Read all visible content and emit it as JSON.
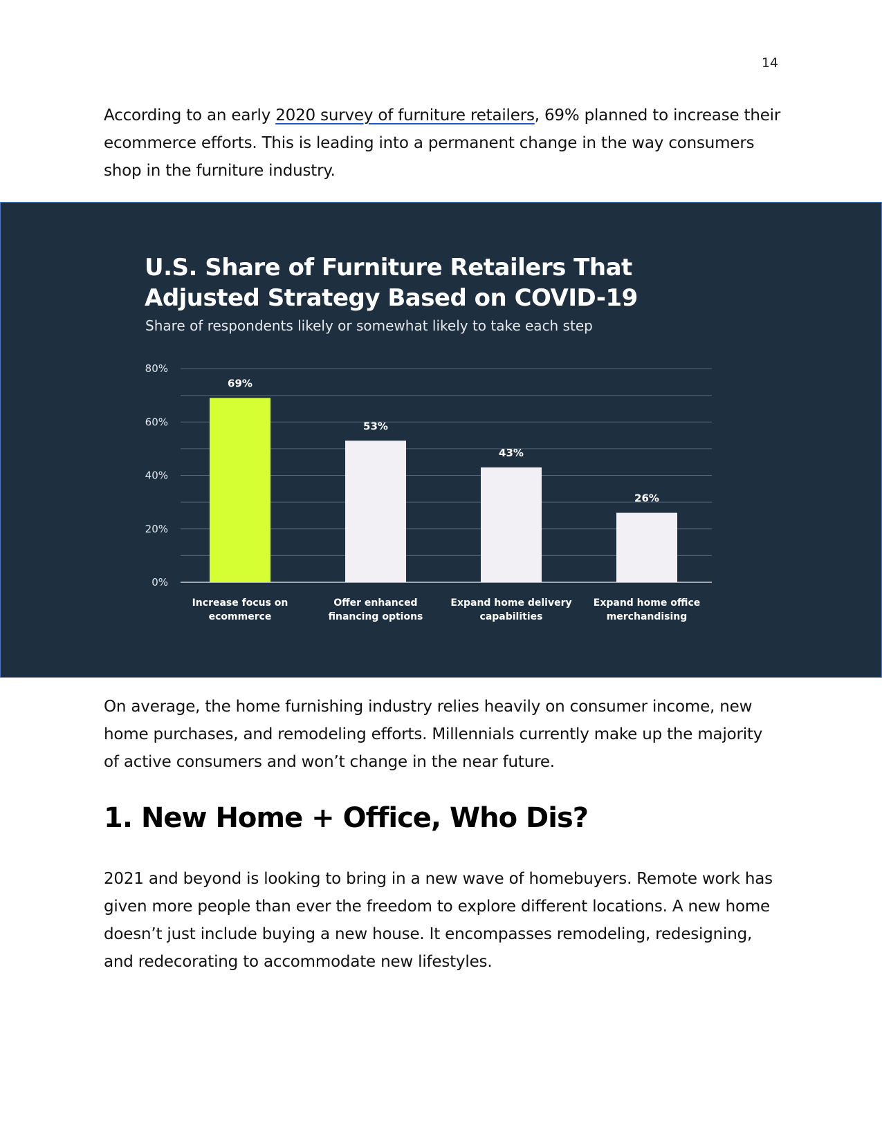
{
  "page_number": "14",
  "intro": {
    "before_link": "According to an early ",
    "link_text": "2020 survey of furniture retailers",
    "after_link": ", 69% planned to increase their ecommerce efforts. This is leading into a permanent change in the way consumers shop in the furniture industry."
  },
  "chart_data": {
    "type": "bar",
    "title": "U.S. Share of Furniture Retailers That Adjusted Strategy Based on COVID-19",
    "subtitle": "Share of respondents likely or somewhat likely to take each step",
    "categories": [
      [
        "Increase focus on",
        "ecommerce"
      ],
      [
        "Offer enhanced",
        "financing options"
      ],
      [
        "Expand home delivery",
        "capabilities"
      ],
      [
        "Expand home office",
        "merchandising"
      ]
    ],
    "values": [
      69,
      53,
      43,
      26
    ],
    "value_labels": [
      "69%",
      "53%",
      "43%",
      "26%"
    ],
    "ylim": [
      0,
      80
    ],
    "yticks": [
      0,
      20,
      40,
      60,
      80
    ],
    "ytick_labels": [
      "0%",
      "20%",
      "40%",
      "60%",
      "80%"
    ],
    "grid": true,
    "colors": {
      "highlight": "#d6ff33",
      "bar": "#f2f0f4",
      "grid": "#56657a",
      "axis": "#c9ced6",
      "label": "#ffffff",
      "background": "#1e2f40"
    }
  },
  "paragraph_2": "On average, the home furnishing industry relies heavily on consumer income, new home purchases, and remodeling efforts. Millennials currently make up the majority of active consumers and won’t change in the near future.",
  "section_heading": "1. New Home + Office, Who Dis?",
  "paragraph_3": "2021 and beyond is looking to bring in a new wave of homebuyers. Remote work has given more people than ever the freedom to explore different locations. A new home doesn’t just include buying a new house. It encompasses remodeling, redesigning, and redecorating to accommodate new lifestyles."
}
